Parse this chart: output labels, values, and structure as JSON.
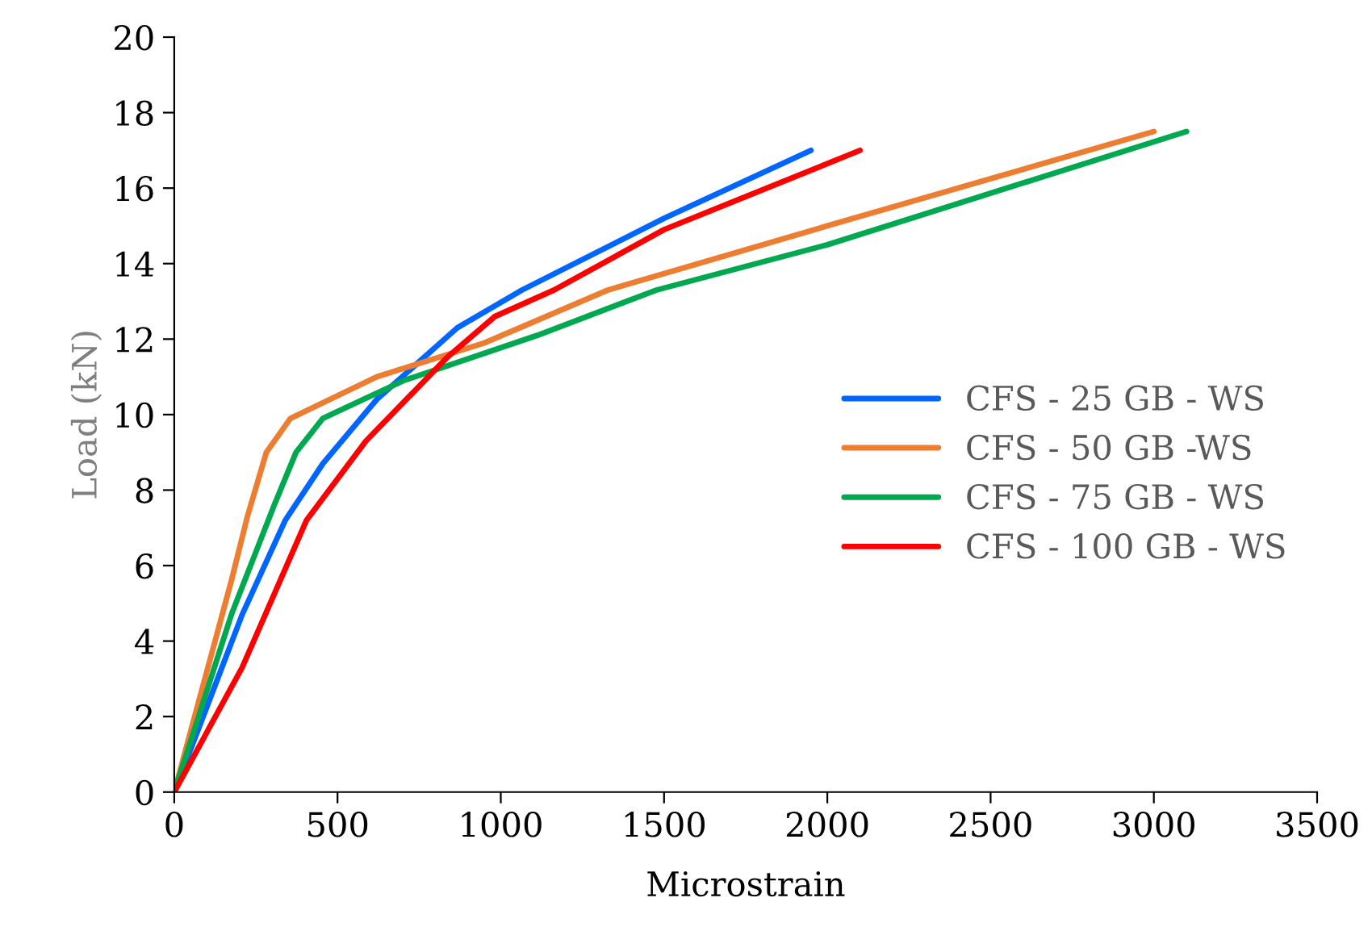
{
  "chart_data": {
    "type": "line",
    "xlabel": "Microstrain",
    "ylabel": "Load (kN)",
    "xlim": [
      0,
      3500
    ],
    "xticks": [
      0,
      500,
      1000,
      1500,
      2000,
      2500,
      3000,
      3500
    ],
    "ylim": [
      0,
      20
    ],
    "yticks": [
      0,
      2,
      4,
      6,
      8,
      10,
      12,
      14,
      16,
      18,
      20
    ],
    "grid": false,
    "legend": "right",
    "marker": "none",
    "line_style": "solid",
    "series": [
      {
        "name": "CFS - 25 GB - WS",
        "color": "#0066ff",
        "x": [
          0,
          208,
          340,
          455,
          620,
          867,
          1065,
          1500,
          1950
        ],
        "values": [
          0,
          4.7,
          7.2,
          8.7,
          10.4,
          12.3,
          13.3,
          15.2,
          17.0
        ]
      },
      {
        "name": "CFS - 50 GB -WS",
        "color": "#ed7d31",
        "x": [
          0,
          175,
          224,
          282,
          356,
          620,
          950,
          1328,
          2000,
          3000
        ],
        "values": [
          0,
          5.6,
          7.3,
          9.0,
          9.9,
          11.0,
          11.9,
          13.3,
          15.0,
          17.5
        ]
      },
      {
        "name": "CFS - 75 GB - WS",
        "color": "#00a84f",
        "x": [
          0,
          175,
          306,
          373,
          455,
          702,
          1112,
          1477,
          2000,
          3100
        ],
        "values": [
          0,
          4.7,
          7.6,
          9.0,
          9.9,
          10.9,
          12.1,
          13.3,
          14.5,
          17.5
        ]
      },
      {
        "name": "CFS - 100 GB - WS",
        "color": "#ff0000",
        "x": [
          0,
          208,
          405,
          587,
          834,
          982,
          1163,
          1500,
          2100
        ],
        "values": [
          0,
          3.3,
          7.2,
          9.3,
          11.5,
          12.6,
          13.3,
          14.9,
          17.0
        ]
      }
    ]
  }
}
